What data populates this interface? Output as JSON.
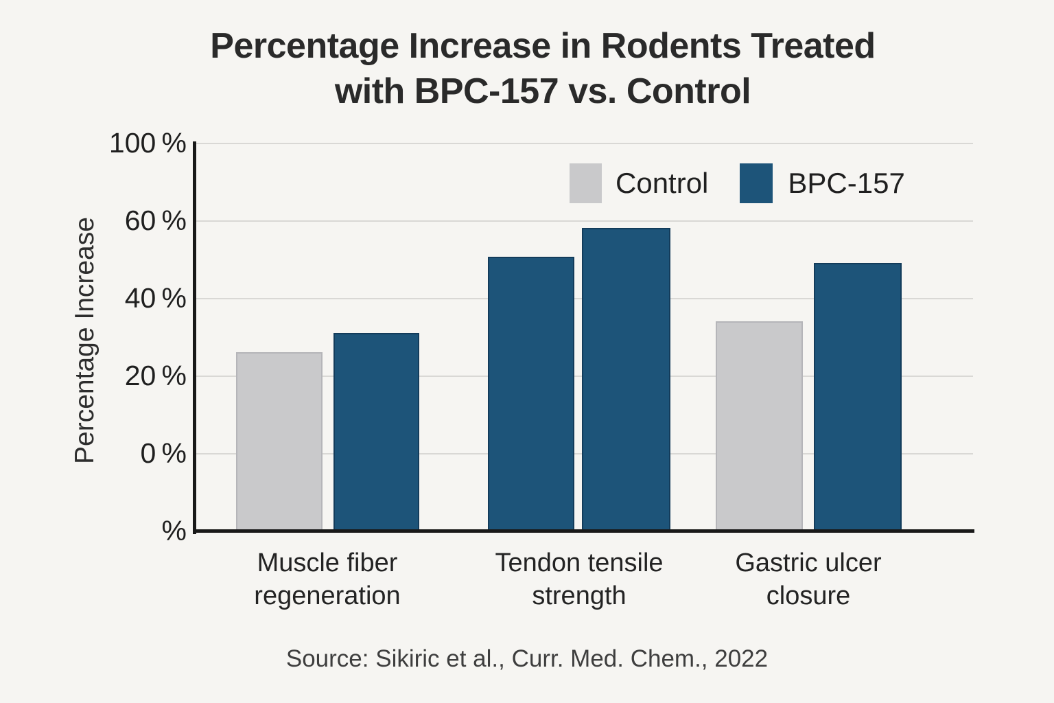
{
  "chart_data": {
    "type": "bar",
    "title": "Percentage Increase in Rodents Treated with BPC-157 vs. Control",
    "title_lines": [
      "Percentage Increase in Rodents Treated",
      "with BPC-157 vs. Control"
    ],
    "ylabel": "Percentage Increase",
    "xlabel": "",
    "categories": [
      "Muscle fiber regeneration",
      "Tendon tensile strength",
      "Gastric ulcer closure"
    ],
    "series": [
      {
        "name": "Control",
        "color": "#c9c9cb",
        "values": [
          26,
          50.5,
          34
        ],
        "bar_colors": [
          "#c9c9cb",
          "#1d5479",
          "#c9c9cb"
        ]
      },
      {
        "name": "BPC-157",
        "color": "#1d5479",
        "values": [
          31,
          58,
          49
        ],
        "bar_colors": [
          "#1d5479",
          "#1d5479",
          "#1d5479"
        ]
      }
    ],
    "y_ticks": [
      "100 %",
      "60 %",
      "40 %",
      "20 %",
      "0 %",
      "%"
    ],
    "ylim": [
      0,
      100
    ],
    "grid": true,
    "legend_position": "top-right",
    "source": "Source: Sikiric et al., Curr. Med. Chem., 2022"
  },
  "colors": {
    "background": "#f6f5f2",
    "title_text": "#2a2a2a",
    "axis": "#191919",
    "gridline": "#d9d8d5",
    "tick_text": "#1f1f1f",
    "bar_gray": "#c9c9cb",
    "bar_gray_border": "#b5b5b9",
    "bar_blue": "#1d5479",
    "bar_blue_border": "#133c5b"
  }
}
